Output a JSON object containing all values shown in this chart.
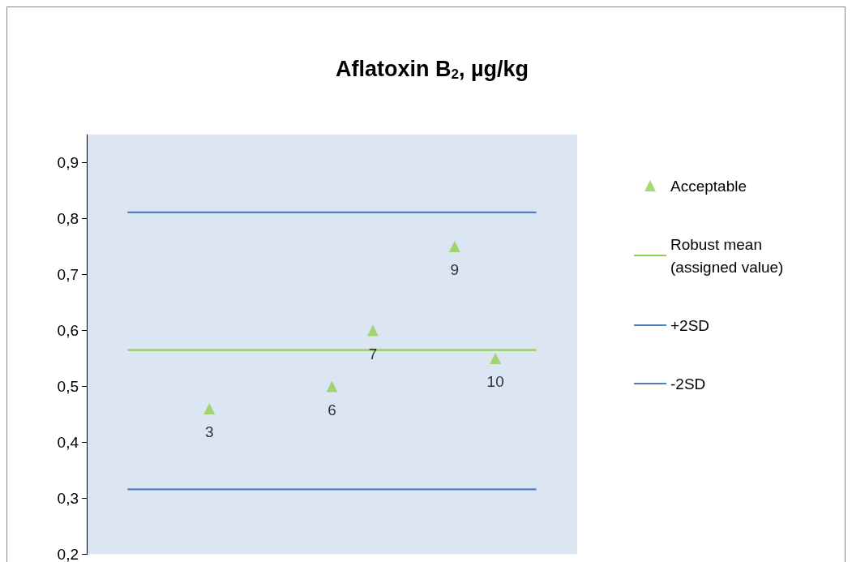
{
  "chart_data": {
    "type": "scatter",
    "title": "Aflatoxin B$_{2}$, µg/kg",
    "categories": [
      null,
      null,
      null,
      null,
      null,
      null,
      null,
      null,
      null,
      null,
      null,
      null,
      null
    ],
    "series": [
      {
        "name": "Acceptable",
        "color": "#92d050",
        "marker": "triangle",
        "values": [
          null,
          null,
          null,
          0.46,
          null,
          null,
          0.5,
          0.6,
          null,
          0.75,
          0.55,
          null,
          null
        ]
      },
      {
        "name": "Robust mean (assigned value)",
        "type": "line",
        "color": "#92d050",
        "values": [
          null,
          0.565,
          0.565,
          0.565,
          0.565,
          0.565,
          0.565,
          0.565,
          0.565,
          0.565,
          0.565,
          0.565,
          null
        ]
      },
      {
        "name": "+2SD",
        "type": "line",
        "color": "#4f81bd",
        "values": [
          null,
          0.811,
          0.811,
          0.811,
          0.811,
          0.811,
          0.811,
          0.811,
          0.811,
          0.811,
          0.811,
          0.811,
          null
        ]
      },
      {
        "name": "-2SD",
        "type": "line",
        "color": "#4f81bd",
        "values": [
          null,
          0.316,
          0.316,
          0.316,
          0.316,
          0.316,
          0.316,
          0.316,
          0.316,
          0.316,
          0.316,
          0.316,
          null
        ]
      }
    ],
    "annotations": [
      {
        "text": "3",
        "y": 0.46
      },
      {
        "text": "6",
        "y": 0.5
      },
      {
        "text": "7",
        "y": 0.6
      },
      {
        "text": "9",
        "y": 0.75
      },
      {
        "text": "10",
        "y": 0.55
      }
    ],
    "ylim": [
      0.2,
      0.95
    ],
    "yticks": [
      {
        "value": 0.2,
        "label": "0,2"
      },
      {
        "value": 0.3,
        "label": "0,3"
      },
      {
        "value": 0.4,
        "label": "0,4"
      },
      {
        "value": 0.5,
        "label": "0,5"
      },
      {
        "value": 0.6,
        "label": "0,6"
      },
      {
        "value": 0.7,
        "label": "0,7"
      },
      {
        "value": 0.8,
        "label": "0,8"
      },
      {
        "value": 0.9,
        "label": "0,9"
      }
    ],
    "tick_labels": "y",
    "grid": false,
    "legend": "right",
    "line_style": "solid"
  }
}
